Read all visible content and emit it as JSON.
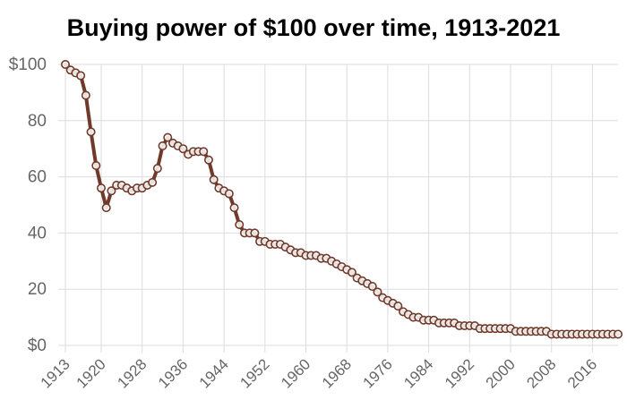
{
  "chart_data": {
    "type": "line",
    "title": "Buying power of $100 over time, 1913-2021",
    "xlabel": "",
    "ylabel": "",
    "xlim": [
      1913,
      2021
    ],
    "ylim": [
      0,
      100
    ],
    "x_ticks": [
      "1913",
      "1920",
      "1928",
      "1936",
      "1944",
      "1952",
      "1960",
      "1968",
      "1976",
      "1984",
      "1992",
      "2000",
      "2008",
      "2016"
    ],
    "y_ticks": [
      "$0",
      "20",
      "40",
      "60",
      "80",
      "$100"
    ],
    "grid": true,
    "legend": "none",
    "series": [
      {
        "color": "#6f3a2a",
        "x": [
          1913,
          1914,
          1915,
          1916,
          1917,
          1918,
          1919,
          1920,
          1921,
          1922,
          1923,
          1924,
          1925,
          1926,
          1927,
          1928,
          1929,
          1930,
          1931,
          1932,
          1933,
          1934,
          1935,
          1936,
          1937,
          1938,
          1939,
          1940,
          1941,
          1942,
          1943,
          1944,
          1945,
          1946,
          1947,
          1948,
          1949,
          1950,
          1951,
          1952,
          1953,
          1954,
          1955,
          1956,
          1957,
          1958,
          1959,
          1960,
          1961,
          1962,
          1963,
          1964,
          1965,
          1966,
          1967,
          1968,
          1969,
          1970,
          1971,
          1972,
          1973,
          1974,
          1975,
          1976,
          1977,
          1978,
          1979,
          1980,
          1981,
          1982,
          1983,
          1984,
          1985,
          1986,
          1987,
          1988,
          1989,
          1990,
          1991,
          1992,
          1993,
          1994,
          1995,
          1996,
          1997,
          1998,
          1999,
          2000,
          2001,
          2002,
          2003,
          2004,
          2005,
          2006,
          2007,
          2008,
          2009,
          2010,
          2011,
          2012,
          2013,
          2014,
          2015,
          2016,
          2017,
          2018,
          2019,
          2020,
          2021
        ],
        "y": [
          100,
          98,
          97,
          96,
          89,
          76,
          64,
          56,
          49,
          55,
          57,
          57,
          56,
          55,
          56,
          56,
          57,
          58,
          63,
          71,
          74,
          72,
          71,
          70,
          68,
          69,
          69,
          69,
          66,
          59,
          56,
          55,
          54,
          49,
          43,
          40,
          40,
          40,
          37,
          37,
          36,
          36,
          36,
          35,
          34,
          33,
          33,
          32,
          32,
          32,
          31,
          31,
          30,
          29,
          28,
          27,
          26,
          24,
          23,
          22,
          21,
          19,
          17,
          16,
          15,
          14,
          12,
          11,
          10,
          10,
          9,
          9,
          9,
          8,
          8,
          8,
          8,
          7,
          7,
          7,
          7,
          6,
          6,
          6,
          6,
          6,
          6,
          6,
          5,
          5,
          5,
          5,
          5,
          5,
          5,
          4,
          4,
          4,
          4,
          4,
          4,
          4,
          4,
          4,
          4,
          4,
          4,
          4,
          4
        ]
      }
    ]
  }
}
